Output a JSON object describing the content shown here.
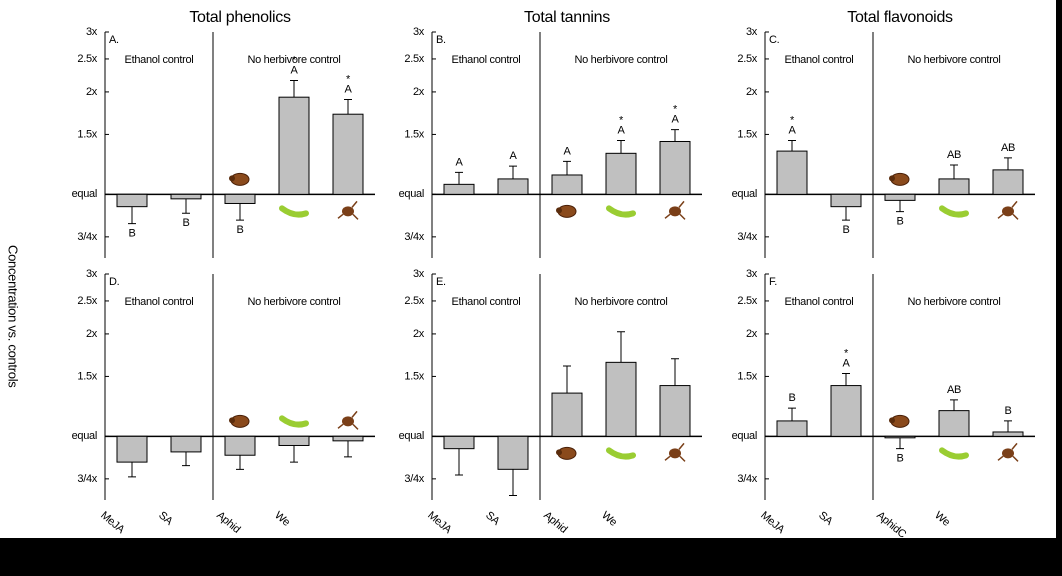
{
  "y_label": "Concentration vs. controls",
  "chart_data": [
    {
      "type": "bar",
      "panel_label": "A.",
      "title": "Total phenolics",
      "group_labels": [
        "Ethanol control",
        "No herbivore control"
      ],
      "color": "#c0c0c0",
      "log_scale": true,
      "values": [
        0.92,
        0.97,
        0.94,
        1.93,
        1.72
      ],
      "errors": [
        0.82,
        0.88,
        0.84,
        2.16,
        1.9
      ],
      "letters": [
        "B",
        "B",
        "B",
        "A",
        "A"
      ],
      "stars": [
        null,
        null,
        null,
        "*",
        "*"
      ],
      "ylim": [
        0.65,
        3
      ],
      "yticks": [
        {
          "value": 0.75,
          "label": "3/4x"
        },
        {
          "value": 1,
          "label": "equal"
        },
        {
          "value": 1.5,
          "label": "1.5x"
        },
        {
          "value": 2,
          "label": "2x"
        },
        {
          "value": 2.5,
          "label": "2.5x"
        },
        {
          "value": 3,
          "label": "3x"
        }
      ]
    },
    {
      "type": "bar",
      "panel_label": "B.",
      "title": "Total tannins",
      "group_labels": [
        "Ethanol control",
        "No herbivore control"
      ],
      "color": "#c0c0c0",
      "log_scale": true,
      "values": [
        1.07,
        1.11,
        1.14,
        1.32,
        1.43
      ],
      "errors": [
        1.16,
        1.21,
        1.25,
        1.44,
        1.55
      ],
      "letters": [
        "A",
        "A",
        "A",
        "A",
        "A"
      ],
      "stars": [
        null,
        null,
        null,
        "*",
        "*"
      ],
      "ylim": [
        0.65,
        3
      ],
      "yticks": [
        {
          "value": 0.75,
          "label": "3/4x"
        },
        {
          "value": 1,
          "label": "equal"
        },
        {
          "value": 1.5,
          "label": "1.5x"
        },
        {
          "value": 2,
          "label": "2x"
        },
        {
          "value": 2.5,
          "label": "2.5x"
        },
        {
          "value": 3,
          "label": "3x"
        }
      ]
    },
    {
      "type": "bar",
      "panel_label": "C.",
      "title": "Total flavonoids",
      "group_labels": [
        "Ethanol control",
        "No herbivore control"
      ],
      "color": "#c0c0c0",
      "log_scale": true,
      "values": [
        1.34,
        0.92,
        0.96,
        1.11,
        1.18
      ],
      "errors": [
        1.44,
        0.84,
        0.89,
        1.22,
        1.28
      ],
      "letters": [
        "A",
        "B",
        "B",
        "AB",
        "AB"
      ],
      "stars": [
        "*",
        null,
        null,
        null,
        null
      ],
      "ylim": [
        0.65,
        3
      ],
      "yticks": [
        {
          "value": 0.75,
          "label": "3/4x"
        },
        {
          "value": 1,
          "label": "equal"
        },
        {
          "value": 1.5,
          "label": "1.5x"
        },
        {
          "value": 2,
          "label": "2x"
        },
        {
          "value": 2.5,
          "label": "2.5x"
        },
        {
          "value": 3,
          "label": "3x"
        }
      ]
    },
    {
      "type": "bar",
      "panel_label": "D.",
      "group_labels": [
        "Ethanol control",
        "No herbivore control"
      ],
      "color": "#c0c0c0",
      "log_scale": true,
      "categories": [
        "MeJA",
        "SA",
        "Aphid",
        "We",
        null
      ],
      "values": [
        0.84,
        0.9,
        0.88,
        0.94,
        0.97
      ],
      "errors": [
        0.76,
        0.82,
        0.8,
        0.84,
        0.87
      ],
      "ylim": [
        0.65,
        3
      ],
      "yticks": [
        {
          "value": 0.75,
          "label": "3/4x"
        },
        {
          "value": 1,
          "label": "equal"
        },
        {
          "value": 1.5,
          "label": "1.5x"
        },
        {
          "value": 2,
          "label": "2x"
        },
        {
          "value": 2.5,
          "label": "2.5x"
        },
        {
          "value": 3,
          "label": "3x"
        }
      ]
    },
    {
      "type": "bar",
      "panel_label": "E.",
      "group_labels": [
        "Ethanol control",
        "No herbivore control"
      ],
      "color": "#c0c0c0",
      "log_scale": true,
      "categories": [
        "MeJA",
        "SA",
        "Aphid",
        "We",
        null
      ],
      "values": [
        0.92,
        0.8,
        1.34,
        1.65,
        1.41
      ],
      "errors": [
        0.77,
        0.67,
        1.61,
        2.03,
        1.69
      ],
      "ylim": [
        0.65,
        3
      ],
      "yticks": [
        {
          "value": 0.75,
          "label": "3/4x"
        },
        {
          "value": 1,
          "label": "equal"
        },
        {
          "value": 1.5,
          "label": "1.5x"
        },
        {
          "value": 2,
          "label": "2x"
        },
        {
          "value": 2.5,
          "label": "2.5x"
        },
        {
          "value": 3,
          "label": "3x"
        }
      ]
    },
    {
      "type": "bar",
      "panel_label": "F.",
      "group_labels": [
        "Ethanol control",
        "No herbivore control"
      ],
      "color": "#c0c0c0",
      "log_scale": true,
      "categories": [
        "MeJA",
        "SA",
        "AphidC",
        "We",
        null
      ],
      "values": [
        1.11,
        1.41,
        0.99,
        1.19,
        1.03
      ],
      "errors": [
        1.21,
        1.53,
        0.92,
        1.28,
        1.11
      ],
      "letters": [
        "B",
        "A",
        "B",
        "AB",
        "B"
      ],
      "stars": [
        null,
        "*",
        null,
        null,
        null
      ],
      "ylim": [
        0.65,
        3
      ],
      "yticks": [
        {
          "value": 0.75,
          "label": "3/4x"
        },
        {
          "value": 1,
          "label": "equal"
        },
        {
          "value": 1.5,
          "label": "1.5x"
        },
        {
          "value": 2,
          "label": "2x"
        },
        {
          "value": 2.5,
          "label": "2.5x"
        },
        {
          "value": 3,
          "label": "3x"
        }
      ]
    }
  ]
}
